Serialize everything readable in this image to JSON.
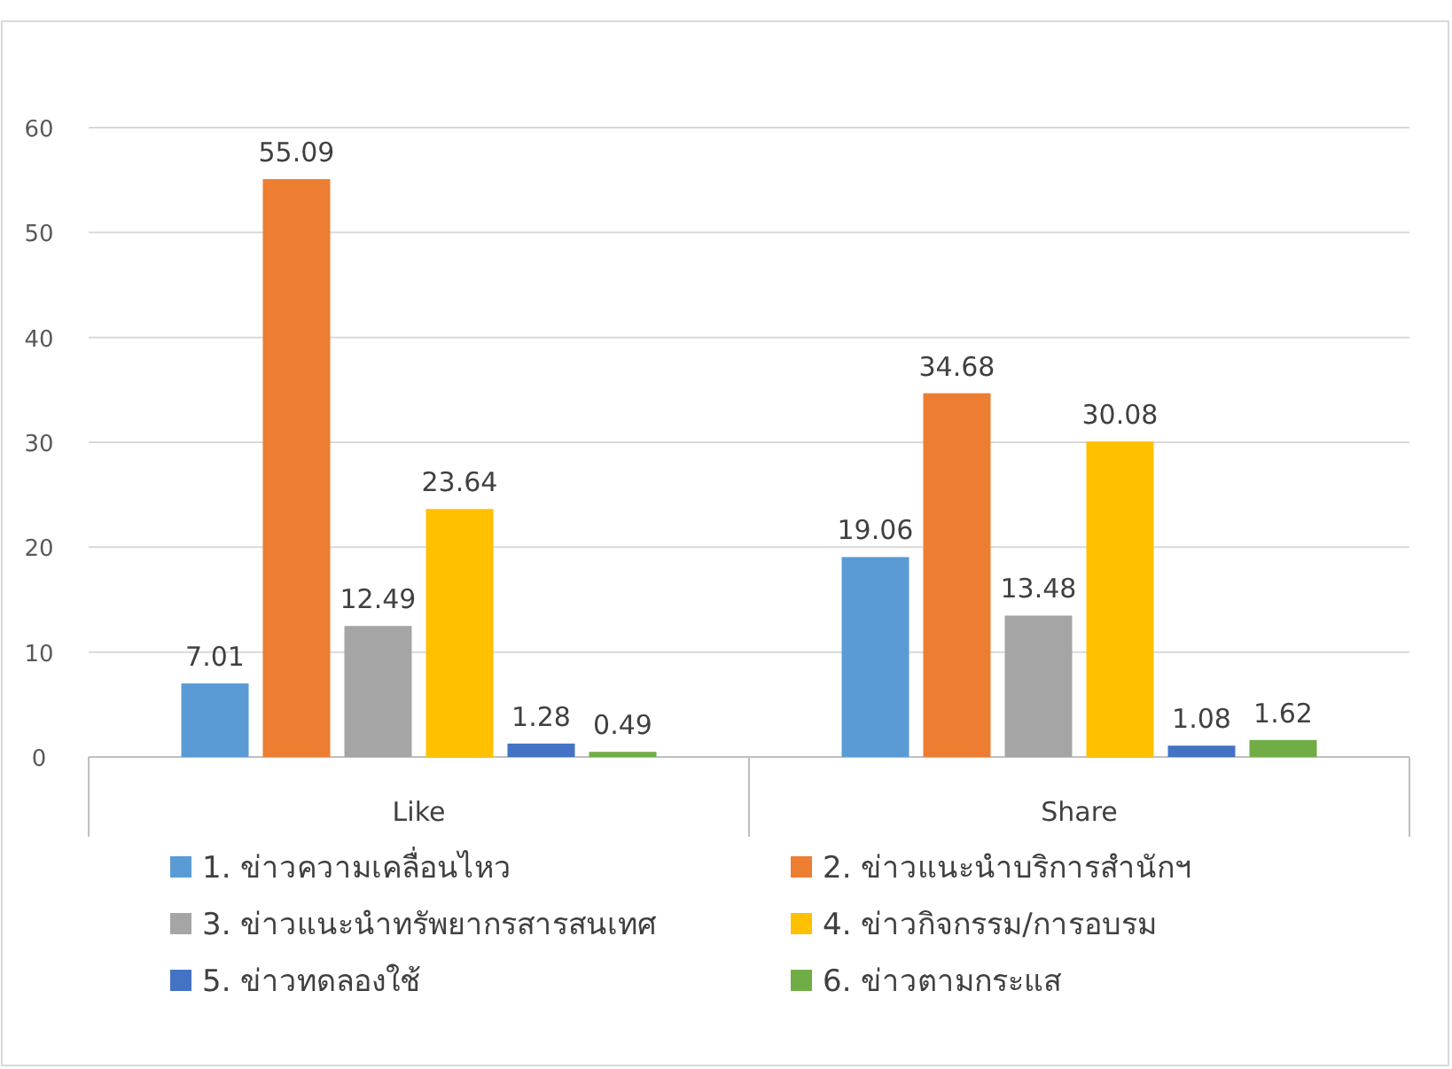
{
  "chart_data": {
    "type": "bar",
    "categories": [
      "Like",
      "Share"
    ],
    "series": [
      {
        "name": "1. ข่าวความเคลื่อนไหว",
        "color": "#5b9bd5",
        "values": [
          7.01,
          19.06
        ]
      },
      {
        "name": "2. ข่าวแนะนำบริการสำนักฯ",
        "color": "#ed7d31",
        "values": [
          55.09,
          34.68
        ]
      },
      {
        "name": "3. ข่าวแนะนำทรัพยากรสารสนเทศ",
        "color": "#a5a5a5",
        "values": [
          12.49,
          13.48
        ]
      },
      {
        "name": "4. ข่าวกิจกรรม/การอบรม",
        "color": "#ffc000",
        "values": [
          23.64,
          30.08
        ]
      },
      {
        "name": "5. ข่าวทดลองใช้",
        "color": "#4472c4",
        "values": [
          1.28,
          1.08
        ]
      },
      {
        "name": "6. ข่าวตามกระแส",
        "color": "#70ad47",
        "values": [
          0.49,
          1.62
        ]
      }
    ],
    "ylim": [
      0,
      60
    ],
    "yticks": [
      0,
      10,
      20,
      30,
      40,
      50,
      60
    ],
    "grid": "y",
    "legend": "bottom",
    "data_labels": true
  }
}
